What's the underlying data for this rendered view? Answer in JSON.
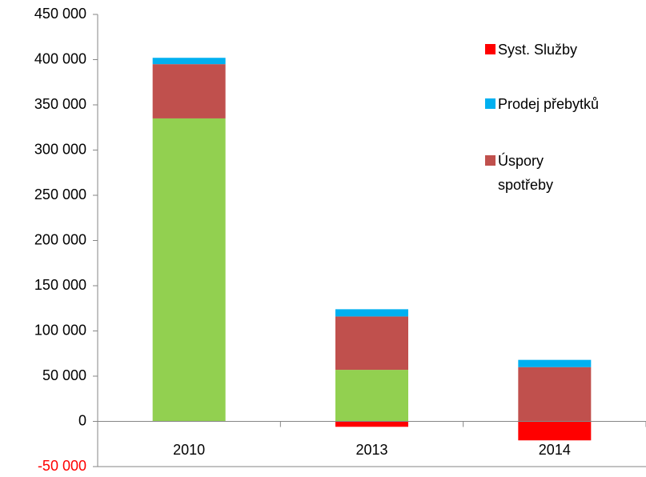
{
  "chart_data": {
    "type": "stacked_bar",
    "categories": [
      "2010",
      "2013",
      "2014"
    ],
    "series": [
      {
        "name": null,
        "color": "#92d050",
        "values": [
          335000,
          57000,
          0
        ]
      },
      {
        "name": "Úspory spotřeby",
        "color": "#c0504d",
        "values": [
          60000,
          59000,
          60000
        ]
      },
      {
        "name": "Prodej přebytků",
        "color": "#00b0f0",
        "values": [
          7000,
          8000,
          8000
        ]
      },
      {
        "name": "Syst. Služby",
        "color": "#ff0000",
        "values": [
          0,
          -6000,
          -21000
        ]
      }
    ],
    "ylim": [
      -50000,
      450000
    ],
    "yticks": [
      {
        "value": -50000,
        "label": "-50 000"
      },
      0,
      {
        "value": 50000,
        "label": "50 000"
      },
      {
        "value": 100000,
        "label": "100 000"
      },
      {
        "value": 150000,
        "label": "150 000"
      },
      {
        "value": 200000,
        "label": "200 000"
      },
      {
        "value": 250000,
        "label": "250 000"
      },
      {
        "value": 300000,
        "label": "300 000"
      },
      {
        "value": 350000,
        "label": "350 000"
      },
      {
        "value": 400000,
        "label": "400 000"
      },
      {
        "value": 450000,
        "label": "450 000"
      }
    ],
    "negative_tick_color": "#ff0000",
    "grid": false,
    "legend": "right"
  }
}
